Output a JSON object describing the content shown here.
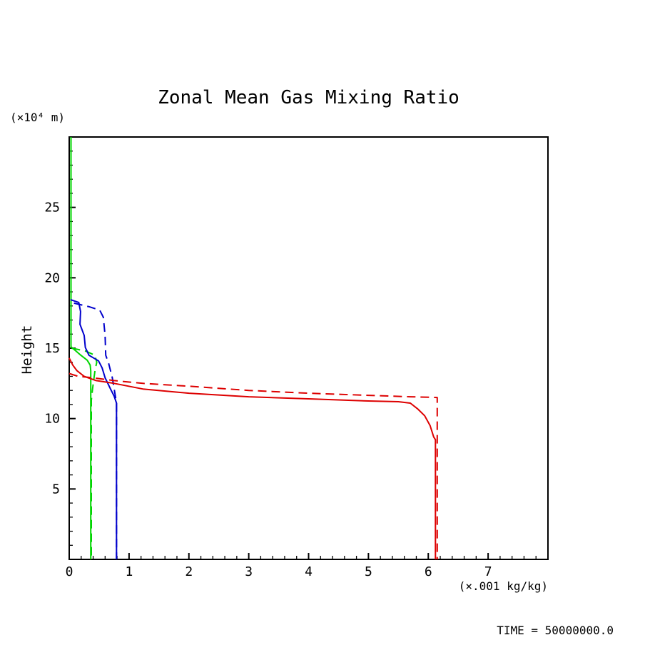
{
  "chart_data": {
    "type": "line",
    "title": "Zonal Mean Gas Mixing Ratio",
    "ylabel": "Height",
    "ylabel_units": "(×10⁴ m)",
    "xlabel_units": "(×.001 kg/kg)",
    "annotation": "TIME = 50000000.0",
    "xlim": [
      0,
      8
    ],
    "ylim": [
      0,
      30
    ],
    "xticks": [
      0,
      1,
      2,
      3,
      4,
      5,
      6,
      7
    ],
    "xtick_labels": [
      "0",
      "1",
      "2",
      "3",
      "4",
      "5",
      "6",
      "7"
    ],
    "yticks": [
      5,
      10,
      15,
      20,
      25
    ],
    "ytick_labels": [
      "5",
      "10",
      "15",
      "20",
      "25"
    ],
    "x_minor_step": 0.2,
    "y_minor_step": 1,
    "grid": false,
    "legend": "none",
    "axis_color": "#000000",
    "series": [
      {
        "name": "green-solid",
        "color": "#00d500",
        "style": "solid",
        "points": [
          [
            0.03,
            30
          ],
          [
            0.03,
            15.1
          ],
          [
            0.18,
            14.55
          ],
          [
            0.3,
            14.15
          ],
          [
            0.35,
            13.8
          ],
          [
            0.36,
            13.4
          ],
          [
            0.36,
            0
          ]
        ]
      },
      {
        "name": "green-dashed",
        "color": "#00d500",
        "style": "dashed",
        "points": [
          [
            0.04,
            15.0
          ],
          [
            0.27,
            14.8
          ],
          [
            0.43,
            14.5
          ],
          [
            0.46,
            14.0
          ],
          [
            0.43,
            13.4
          ],
          [
            0.39,
            12.1
          ],
          [
            0.37,
            11.3
          ],
          [
            0.37,
            0
          ]
        ]
      },
      {
        "name": "blue-solid",
        "color": "#0000cc",
        "style": "solid",
        "points": [
          [
            0.02,
            18.45
          ],
          [
            0.16,
            18.25
          ],
          [
            0.19,
            17.6
          ],
          [
            0.18,
            16.7
          ],
          [
            0.25,
            15.9
          ],
          [
            0.27,
            15.05
          ],
          [
            0.33,
            14.5
          ],
          [
            0.49,
            14.1
          ],
          [
            0.55,
            13.6
          ],
          [
            0.6,
            12.9
          ],
          [
            0.69,
            12.1
          ],
          [
            0.75,
            11.6
          ],
          [
            0.79,
            11.1
          ],
          [
            0.79,
            0
          ]
        ]
      },
      {
        "name": "blue-dashed",
        "color": "#0000cc",
        "style": "dashed",
        "points": [
          [
            0.08,
            18.2
          ],
          [
            0.33,
            17.95
          ],
          [
            0.51,
            17.7
          ],
          [
            0.57,
            17.2
          ],
          [
            0.6,
            15.9
          ],
          [
            0.61,
            14.5
          ],
          [
            0.66,
            13.9
          ],
          [
            0.72,
            12.9
          ],
          [
            0.76,
            11.9
          ],
          [
            0.79,
            11.1
          ],
          [
            0.79,
            0
          ]
        ]
      },
      {
        "name": "red-solid",
        "color": "#dd0000",
        "style": "solid",
        "points": [
          [
            0,
            14.3
          ],
          [
            0.06,
            13.8
          ],
          [
            0.13,
            13.4
          ],
          [
            0.25,
            13.0
          ],
          [
            0.45,
            12.7
          ],
          [
            0.75,
            12.5
          ],
          [
            1.23,
            12.1
          ],
          [
            2.0,
            11.8
          ],
          [
            3.0,
            11.55
          ],
          [
            4.0,
            11.4
          ],
          [
            5.0,
            11.25
          ],
          [
            5.5,
            11.2
          ],
          [
            5.7,
            11.1
          ],
          [
            5.82,
            10.7
          ],
          [
            5.94,
            10.2
          ],
          [
            6.03,
            9.5
          ],
          [
            6.09,
            8.7
          ],
          [
            6.12,
            8.5
          ],
          [
            6.12,
            0
          ]
        ]
      },
      {
        "name": "red-dashed",
        "color": "#dd0000",
        "style": "dashed",
        "points": [
          [
            0,
            13.2
          ],
          [
            0.15,
            13.0
          ],
          [
            0.39,
            12.9
          ],
          [
            0.75,
            12.7
          ],
          [
            1.23,
            12.5
          ],
          [
            2.0,
            12.3
          ],
          [
            3.0,
            12.0
          ],
          [
            4.0,
            11.8
          ],
          [
            5.0,
            11.65
          ],
          [
            5.7,
            11.55
          ],
          [
            6.15,
            11.5
          ],
          [
            6.15,
            0
          ]
        ]
      }
    ]
  }
}
